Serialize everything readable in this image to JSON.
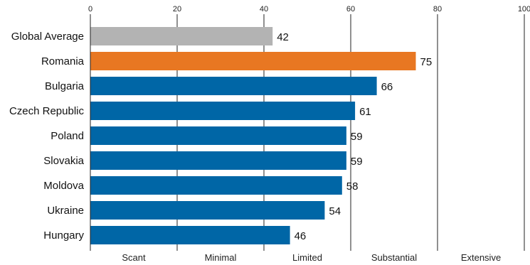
{
  "chart_data": {
    "type": "bar",
    "orientation": "horizontal",
    "categories": [
      "Global Average",
      "Romania",
      "Bulgaria",
      "Czech Republic",
      "Poland",
      "Slovakia",
      "Moldova",
      "Ukraine",
      "Hungary"
    ],
    "values": [
      42,
      75,
      66,
      61,
      59,
      59,
      58,
      54,
      46
    ],
    "bar_colors": [
      "#b3b3b3",
      "#e87722",
      "#0066a6",
      "#0066a6",
      "#0066a6",
      "#0066a6",
      "#0066a6",
      "#0066a6",
      "#0066a6"
    ],
    "xlim": [
      0,
      100
    ],
    "xticks": [
      "0",
      "20",
      "40",
      "60",
      "80",
      "100"
    ],
    "bands": [
      "Scant",
      "Minimal",
      "Limited",
      "Substantial",
      "Extensive"
    ],
    "title": "",
    "xlabel": "",
    "ylabel": "",
    "grid": true
  }
}
